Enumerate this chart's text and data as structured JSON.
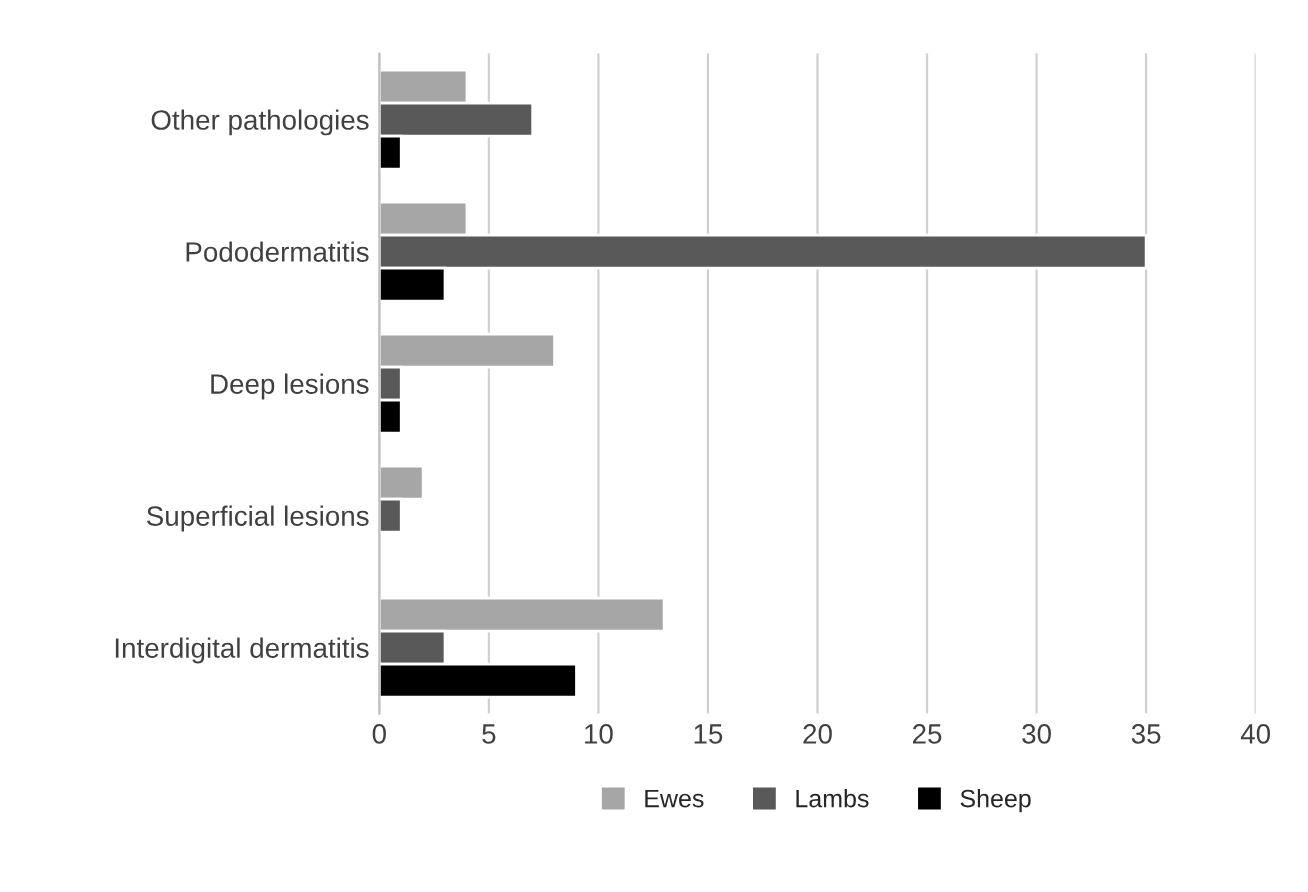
{
  "chart_data": {
    "type": "bar",
    "orientation": "horizontal",
    "categories": [
      "Other pathologies",
      "Pododermatitis",
      "Deep lesions",
      "Superficial lesions",
      "Interdigital dermatitis"
    ],
    "series": [
      {
        "name": "Ewes",
        "color": "#a6a6a6",
        "values": [
          4,
          4,
          8,
          2,
          13
        ]
      },
      {
        "name": "Lambs",
        "color": "#595959",
        "values": [
          7,
          35,
          1,
          1,
          3
        ]
      },
      {
        "name": "Sheep",
        "color": "#000000",
        "values": [
          1,
          3,
          1,
          null,
          9
        ]
      }
    ],
    "xlim": [
      0,
      40
    ],
    "xticks": [
      0,
      5,
      10,
      15,
      20,
      25,
      30,
      35,
      40
    ],
    "grid": "x",
    "legend": "bottom"
  }
}
